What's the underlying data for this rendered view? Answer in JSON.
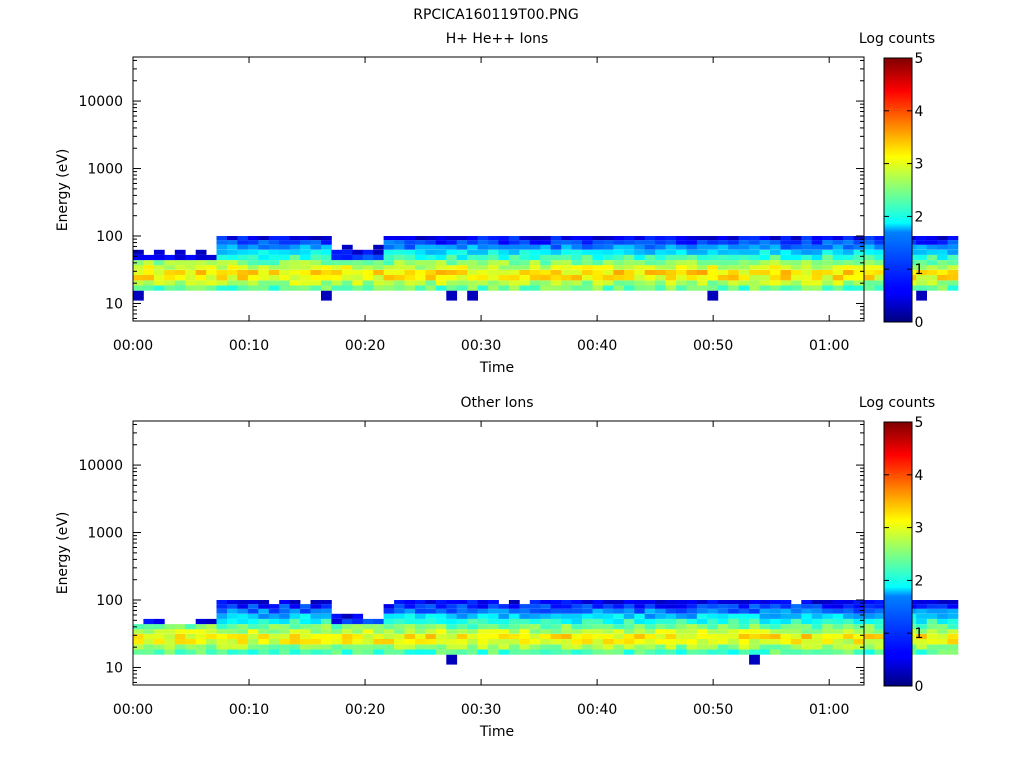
{
  "figure_title": "RPCICA160119T00.PNG",
  "chart_data": [
    {
      "type": "heatmap",
      "title": "H+ He++ Ions",
      "xlabel": "Time",
      "ylabel": "Energy (eV)",
      "y_scale": "log",
      "xlim_min": [
        0,
        63
      ],
      "ylim": [
        5.5,
        45000
      ],
      "x_ticks": [
        0,
        10,
        20,
        30,
        40,
        50,
        60
      ],
      "x_tick_labels": [
        "00:00",
        "00:10",
        "00:20",
        "00:30",
        "00:40",
        "00:50",
        "01:00"
      ],
      "y_ticks": [
        10,
        100,
        1000,
        10000
      ],
      "y_tick_labels": [
        "10",
        "100",
        "1000",
        "10000"
      ],
      "colorbar": {
        "label": "Log counts",
        "range": [
          0,
          5
        ],
        "ticks": [
          "0",
          "1",
          "2",
          "3",
          "4",
          "5"
        ]
      },
      "approx_data": {
        "time_start_min": 0,
        "time_step_min": 0.9,
        "bins": 79,
        "energy_bands_eV": [
          12,
          17,
          20,
          24,
          29,
          34,
          40,
          48,
          57,
          68,
          80,
          93
        ],
        "band_lower_edges_eV": [
          11,
          15.5,
          18.5,
          22,
          26.5,
          31.5,
          37,
          44,
          52.5,
          62.5,
          74,
          87
        ],
        "band_upper_edge_eV": 100,
        "approx_peak_log_counts": 3.4,
        "peak_energy_eV": 27
      }
    },
    {
      "type": "heatmap",
      "title": "Other Ions",
      "xlabel": "Time",
      "ylabel": "Energy (eV)",
      "y_scale": "log",
      "xlim_min": [
        0,
        63
      ],
      "ylim": [
        5.5,
        45000
      ],
      "x_ticks": [
        0,
        10,
        20,
        30,
        40,
        50,
        60
      ],
      "x_tick_labels": [
        "00:00",
        "00:10",
        "00:20",
        "00:30",
        "00:40",
        "00:50",
        "01:00"
      ],
      "y_ticks": [
        10,
        100,
        1000,
        10000
      ],
      "y_tick_labels": [
        "10",
        "100",
        "1000",
        "10000"
      ],
      "colorbar": {
        "label": "Log counts",
        "range": [
          0,
          5
        ],
        "ticks": [
          "0",
          "1",
          "2",
          "3",
          "4",
          "5"
        ]
      },
      "approx_data": {
        "time_start_min": 0,
        "time_step_min": 0.9,
        "bins": 79,
        "energy_bands_eV": [
          12,
          17,
          20,
          24,
          29,
          34,
          40,
          48,
          57,
          68,
          80,
          93
        ],
        "band_lower_edges_eV": [
          11,
          15.5,
          18.5,
          22,
          26.5,
          31.5,
          37,
          44,
          52.5,
          62.5,
          74,
          87
        ],
        "band_upper_edge_eV": 100,
        "approx_peak_log_counts": 3.3,
        "peak_energy_eV": 27
      }
    }
  ]
}
